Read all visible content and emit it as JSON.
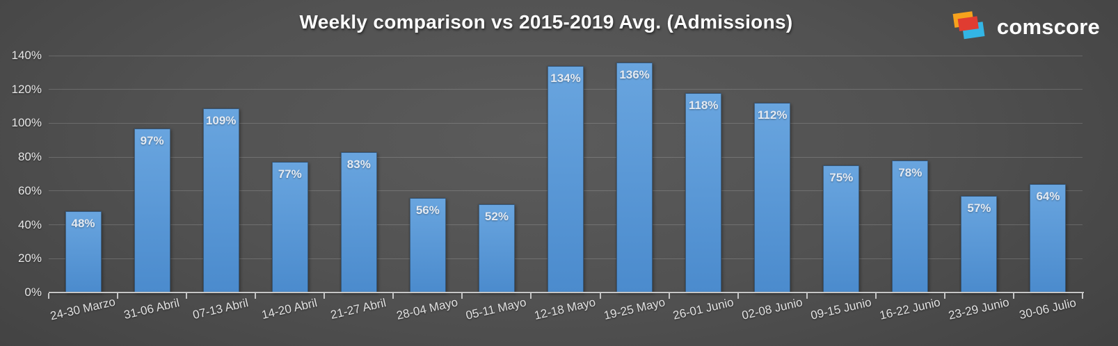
{
  "header": {
    "logo_wordmark": "comscore",
    "logo_colors": {
      "orange": "#F6A21D",
      "red": "#E03C31",
      "cyan": "#33B5E5"
    }
  },
  "chart_data": {
    "type": "bar",
    "title": "Weekly comparison vs 2015-2019 Avg. (Admissions)",
    "categories": [
      "24-30 Marzo",
      "31-06 Abril",
      "07-13 Abril",
      "14-20 Abril",
      "21-27 Abril",
      "28-04 Mayo",
      "05-11 Mayo",
      "12-18 Mayo",
      "19-25 Mayo",
      "26-01 Junio",
      "02-08 Junio",
      "09-15 Junio",
      "16-22 Junio",
      "23-29 Junio",
      "30-06 Julio"
    ],
    "values": [
      48,
      97,
      109,
      77,
      83,
      56,
      52,
      134,
      136,
      118,
      112,
      75,
      78,
      57,
      64
    ],
    "value_labels": [
      "48%",
      "97%",
      "109%",
      "77%",
      "83%",
      "56%",
      "52%",
      "134%",
      "136%",
      "118%",
      "112%",
      "75%",
      "78%",
      "57%",
      "64%"
    ],
    "xlabel": "",
    "ylabel": "",
    "ylim": [
      0,
      140
    ],
    "ytick_step": 20,
    "ytick_labels": [
      "0%",
      "20%",
      "40%",
      "60%",
      "80%",
      "100%",
      "120%",
      "140%"
    ],
    "grid": true,
    "legend": "none",
    "bar_gradient_top": "#69A5DF",
    "bar_gradient_bottom": "#4B8BCD",
    "value_label_position": "inside-top"
  }
}
